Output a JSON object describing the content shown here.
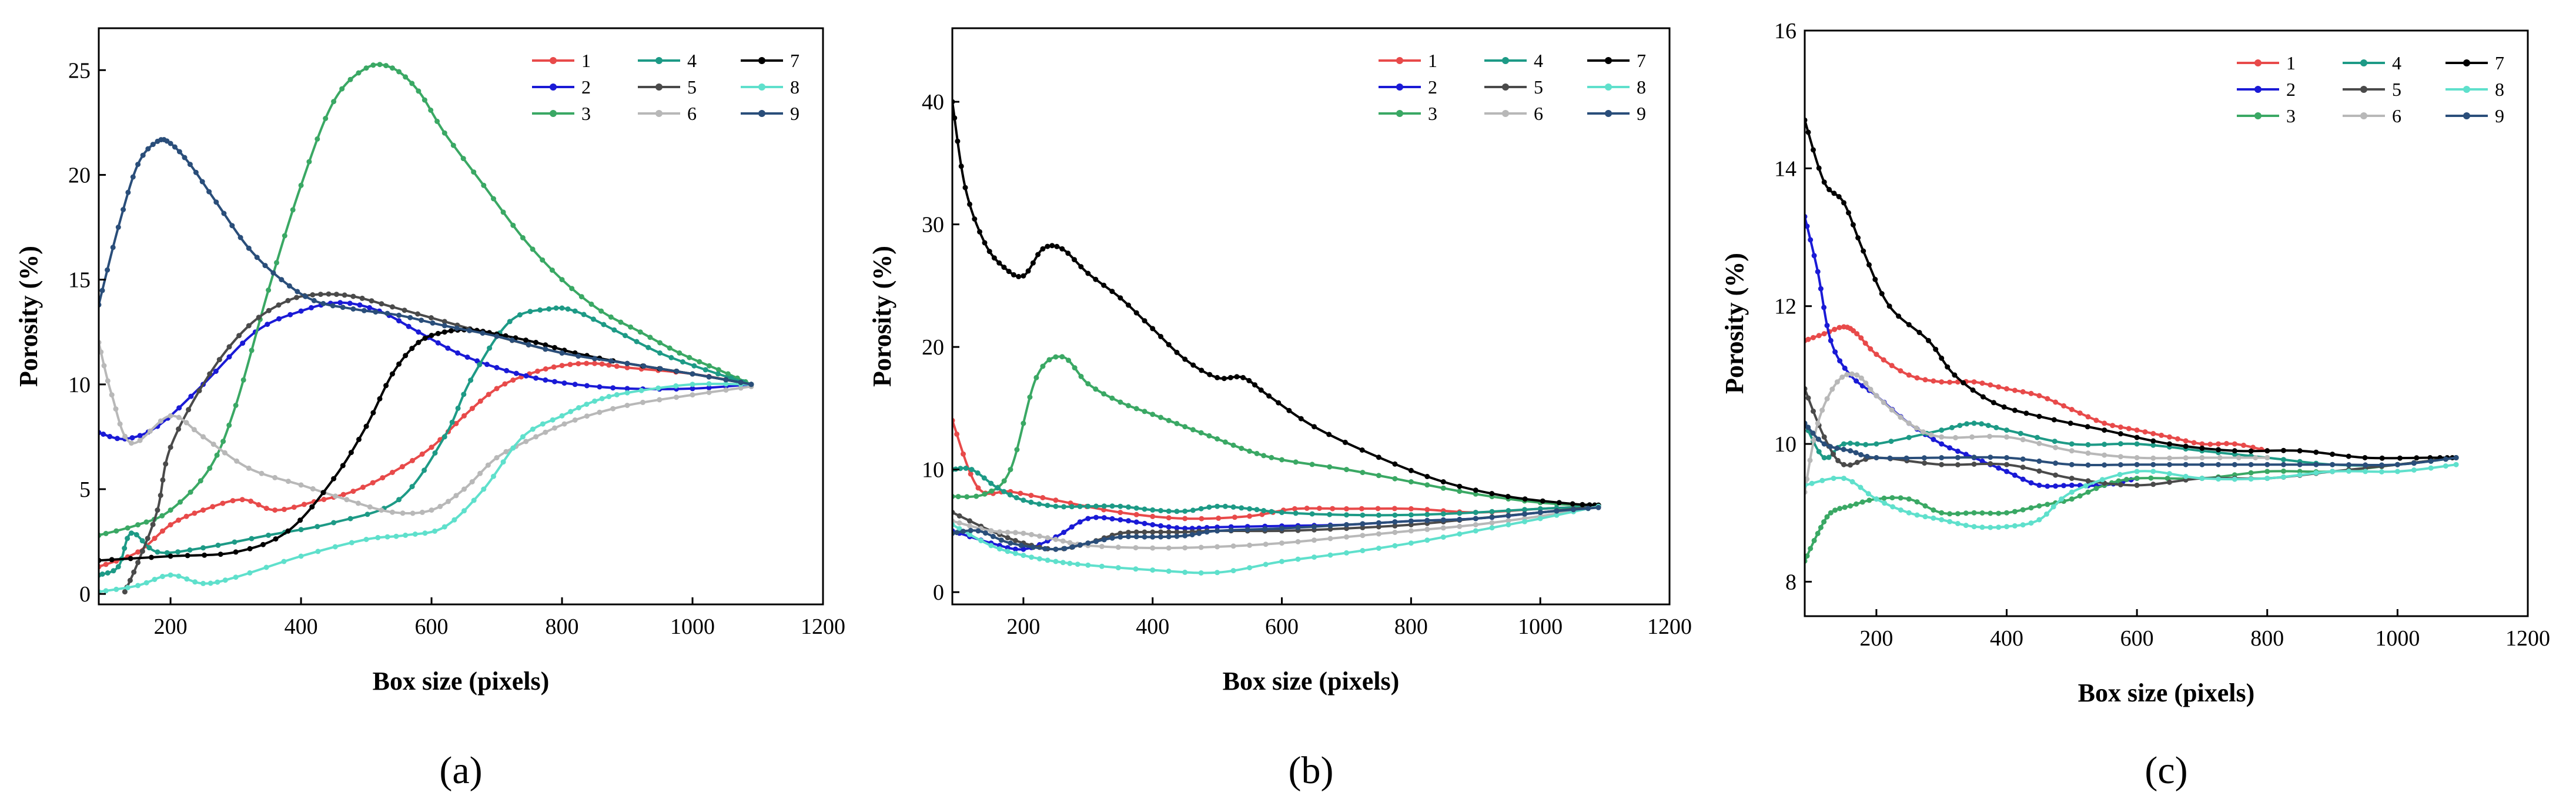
{
  "figure": {
    "xlabel": "Box size (pixels)",
    "ylabel": "Porosity (%)",
    "legend_labels": [
      "1",
      "2",
      "3",
      "4",
      "5",
      "6",
      "7",
      "8",
      "9"
    ],
    "series_colors": [
      "#e84a4a",
      "#1a1ad6",
      "#3aa864",
      "#1d9a86",
      "#4a4a4a",
      "#b8b8b8",
      "#000000",
      "#5fe0cc",
      "#2a4e7a"
    ]
  },
  "chart_data": [
    {
      "type": "line",
      "panel_label": "(a)",
      "xlabel": "Box size (pixels)",
      "ylabel": "Porosity (%)",
      "xlim": [
        90,
        1200
      ],
      "ylim": [
        -0.5,
        27
      ],
      "xticks": [
        200,
        400,
        600,
        800,
        1000,
        1200
      ],
      "yticks": [
        0,
        5,
        10,
        15,
        20,
        25
      ],
      "series": [
        {
          "name": "1",
          "x": [
            90,
            150,
            200,
            250,
            310,
            360,
            420,
            480,
            540,
            600,
            650,
            700,
            750,
            800,
            850,
            900,
            1000,
            1090
          ],
          "y": [
            1.3,
            2.0,
            3.3,
            4.0,
            4.5,
            4.0,
            4.4,
            4.9,
            5.8,
            7.0,
            8.5,
            9.8,
            10.5,
            10.9,
            11.0,
            10.8,
            10.5,
            10.0
          ]
        },
        {
          "name": "2",
          "x": [
            90,
            130,
            180,
            250,
            330,
            400,
            460,
            520,
            580,
            640,
            700,
            760,
            820,
            900,
            1000,
            1090
          ],
          "y": [
            7.7,
            7.4,
            8.0,
            10.0,
            12.5,
            13.5,
            13.9,
            13.5,
            12.5,
            11.5,
            10.8,
            10.3,
            10.0,
            9.8,
            9.8,
            10.0
          ]
        },
        {
          "name": "3",
          "x": [
            90,
            150,
            200,
            260,
            300,
            350,
            400,
            450,
            500,
            540,
            580,
            620,
            680,
            740,
            800,
            860,
            920,
            980,
            1040,
            1090
          ],
          "y": [
            2.8,
            3.3,
            4.0,
            6.0,
            9.0,
            14.5,
            19.5,
            23.5,
            25.1,
            25.1,
            24.0,
            22.0,
            19.5,
            17.0,
            15.0,
            13.5,
            12.5,
            11.5,
            10.7,
            10.0
          ]
        },
        {
          "name": "4",
          "x": [
            90,
            120,
            140,
            180,
            250,
            350,
            450,
            550,
            620,
            660,
            720,
            780,
            820,
            880,
            950,
            1020,
            1090
          ],
          "y": [
            0.9,
            1.3,
            2.9,
            2.0,
            2.2,
            2.8,
            3.4,
            4.5,
            7.5,
            10.2,
            13.0,
            13.6,
            13.5,
            12.6,
            11.5,
            10.7,
            10.0
          ]
        },
        {
          "name": "5",
          "x": [
            130,
            150,
            180,
            200,
            260,
            320,
            380,
            430,
            480,
            540,
            620,
            700,
            800,
            900,
            1000,
            1090
          ],
          "y": [
            0.1,
            1.5,
            4.0,
            7.0,
            10.5,
            12.8,
            14.0,
            14.3,
            14.2,
            13.7,
            13.0,
            12.3,
            11.5,
            11.0,
            10.5,
            10.0
          ]
        },
        {
          "name": "6",
          "x": [
            90,
            110,
            140,
            200,
            250,
            320,
            400,
            470,
            540,
            600,
            650,
            700,
            760,
            820,
            900,
            1000,
            1090
          ],
          "y": [
            12.0,
            9.5,
            7.2,
            8.5,
            7.5,
            6.0,
            5.2,
            4.5,
            3.9,
            4.0,
            5.0,
            6.5,
            7.5,
            8.3,
            9.0,
            9.5,
            9.9
          ]
        },
        {
          "name": "7",
          "x": [
            90,
            200,
            300,
            380,
            450,
            500,
            540,
            580,
            620,
            660,
            700,
            760,
            820,
            900,
            1000,
            1090
          ],
          "y": [
            1.6,
            1.8,
            2.0,
            3.0,
            5.5,
            8.0,
            10.5,
            12.0,
            12.5,
            12.6,
            12.4,
            12.0,
            11.5,
            11.0,
            10.5,
            10.0
          ]
        },
        {
          "name": "8",
          "x": [
            90,
            150,
            200,
            250,
            300,
            400,
            500,
            560,
            620,
            680,
            740,
            800,
            850,
            900,
            1000,
            1090
          ],
          "y": [
            0.1,
            0.4,
            0.9,
            0.5,
            0.8,
            1.8,
            2.6,
            2.8,
            3.2,
            5.0,
            7.5,
            8.5,
            9.2,
            9.6,
            10.0,
            10.0
          ]
        },
        {
          "name": "9",
          "x": [
            90,
            120,
            150,
            180,
            200,
            230,
            270,
            320,
            370,
            420,
            480,
            550,
            620,
            700,
            800,
            900,
            1000,
            1090
          ],
          "y": [
            13.8,
            17.5,
            20.5,
            21.6,
            21.5,
            20.5,
            18.7,
            16.5,
            15.0,
            14.0,
            13.6,
            13.3,
            12.8,
            12.3,
            11.5,
            11.0,
            10.5,
            10.0
          ]
        }
      ],
      "legend_position": "top-right"
    },
    {
      "type": "line",
      "panel_label": "(b)",
      "xlabel": "Box size (pixels)",
      "ylabel": "Porosity (%)",
      "xlim": [
        90,
        1200
      ],
      "ylim": [
        -1,
        46
      ],
      "xticks": [
        200,
        400,
        600,
        800,
        1000,
        1200
      ],
      "yticks": [
        0,
        10,
        20,
        30,
        40
      ],
      "series": [
        {
          "name": "1",
          "x": [
            90,
            130,
            180,
            250,
            350,
            450,
            550,
            620,
            700,
            800,
            900,
            1000,
            1090
          ],
          "y": [
            14.0,
            8.5,
            8.2,
            7.5,
            6.5,
            6.0,
            6.2,
            6.8,
            6.8,
            6.8,
            6.5,
            6.8,
            7.0
          ]
        },
        {
          "name": "2",
          "x": [
            90,
            150,
            200,
            250,
            300,
            350,
            400,
            450,
            500,
            600,
            700,
            800,
            900,
            1000,
            1090
          ],
          "y": [
            5.0,
            4.0,
            3.5,
            4.5,
            6.0,
            5.9,
            5.5,
            5.2,
            5.3,
            5.4,
            5.5,
            5.8,
            6.0,
            6.5,
            7.0
          ]
        },
        {
          "name": "3",
          "x": [
            90,
            140,
            180,
            220,
            260,
            300,
            350,
            400,
            450,
            500,
            550,
            600,
            700,
            800,
            900,
            1000,
            1090
          ],
          "y": [
            7.8,
            8.0,
            10.0,
            17.5,
            19.2,
            17.0,
            15.5,
            14.5,
            13.5,
            12.5,
            11.5,
            10.8,
            10.0,
            9.0,
            8.0,
            7.3,
            7.0
          ]
        },
        {
          "name": "4",
          "x": [
            90,
            120,
            160,
            200,
            250,
            300,
            350,
            400,
            450,
            500,
            550,
            600,
            700,
            800,
            900,
            1000,
            1090
          ],
          "y": [
            10.0,
            10.0,
            8.5,
            7.5,
            7.0,
            7.0,
            7.0,
            6.7,
            6.6,
            7.0,
            6.8,
            6.5,
            6.3,
            6.3,
            6.5,
            6.8,
            7.0
          ]
        },
        {
          "name": "5",
          "x": [
            90,
            150,
            200,
            250,
            300,
            350,
            400,
            450,
            500,
            600,
            700,
            800,
            900,
            1000,
            1090
          ],
          "y": [
            6.5,
            5.0,
            4.0,
            3.5,
            4.0,
            4.8,
            4.9,
            4.9,
            5.0,
            5.0,
            5.2,
            5.5,
            6.0,
            6.5,
            7.0
          ]
        },
        {
          "name": "6",
          "x": [
            90,
            150,
            200,
            250,
            300,
            400,
            500,
            600,
            700,
            800,
            900,
            1000,
            1090
          ],
          "y": [
            5.8,
            5.0,
            4.8,
            4.3,
            3.8,
            3.6,
            3.7,
            4.0,
            4.5,
            5.0,
            5.5,
            6.2,
            7.0
          ]
        },
        {
          "name": "7",
          "x": [
            90,
            110,
            140,
            170,
            200,
            230,
            260,
            300,
            350,
            400,
            450,
            500,
            540,
            580,
            650,
            750,
            850,
            950,
            1050,
            1090
          ],
          "y": [
            40.0,
            33.0,
            28.5,
            26.5,
            25.8,
            28.0,
            28.0,
            26.0,
            24.0,
            21.5,
            19.0,
            17.5,
            17.5,
            16.0,
            13.5,
            11.0,
            9.0,
            7.8,
            7.2,
            7.1
          ]
        },
        {
          "name": "8",
          "x": [
            90,
            150,
            200,
            250,
            300,
            400,
            500,
            600,
            700,
            800,
            900,
            1000,
            1090
          ],
          "y": [
            5.5,
            3.8,
            3.0,
            2.5,
            2.2,
            1.8,
            1.6,
            2.5,
            3.2,
            4.0,
            5.0,
            6.0,
            7.0
          ]
        },
        {
          "name": "9",
          "x": [
            90,
            130,
            180,
            250,
            300,
            350,
            400,
            450,
            500,
            600,
            700,
            800,
            900,
            1000,
            1090
          ],
          "y": [
            4.8,
            5.0,
            4.0,
            3.5,
            4.0,
            4.5,
            4.5,
            4.6,
            5.0,
            5.2,
            5.5,
            5.8,
            6.0,
            6.5,
            6.9
          ]
        }
      ],
      "legend_position": "top-right"
    },
    {
      "type": "line",
      "panel_label": "(c)",
      "xlabel": "Box size (pixels)",
      "ylabel": "Porosity (%)",
      "xlim": [
        90,
        1200
      ],
      "ylim": [
        7.5,
        16
      ],
      "xticks": [
        200,
        400,
        600,
        800,
        1000,
        1200
      ],
      "yticks": [
        8,
        10,
        12,
        14,
        16
      ],
      "series": [
        {
          "name": "1",
          "x": [
            90,
            120,
            150,
            170,
            200,
            250,
            300,
            350,
            400,
            450,
            500,
            550,
            600,
            650,
            700,
            750,
            800
          ],
          "y": [
            11.5,
            11.6,
            11.7,
            11.6,
            11.3,
            11.0,
            10.9,
            10.9,
            10.8,
            10.7,
            10.5,
            10.3,
            10.2,
            10.1,
            10.0,
            10.0,
            9.9
          ]
        },
        {
          "name": "2",
          "x": [
            90,
            110,
            130,
            160,
            200,
            250,
            300,
            350,
            400,
            450,
            500,
            550,
            600
          ],
          "y": [
            13.3,
            12.5,
            11.5,
            11.0,
            10.7,
            10.3,
            10.0,
            9.8,
            9.6,
            9.4,
            9.4,
            9.4,
            9.5
          ]
        },
        {
          "name": "3",
          "x": [
            90,
            110,
            130,
            160,
            200,
            250,
            300,
            350,
            400,
            450,
            500,
            550,
            600,
            700,
            800,
            900,
            1000,
            1090
          ],
          "y": [
            8.3,
            8.7,
            9.0,
            9.1,
            9.2,
            9.2,
            9.0,
            9.0,
            9.0,
            9.1,
            9.2,
            9.4,
            9.5,
            9.5,
            9.6,
            9.6,
            9.7,
            9.8
          ]
        },
        {
          "name": "4",
          "x": [
            90,
            120,
            150,
            200,
            300,
            350,
            400,
            500,
            600,
            700,
            800,
            900,
            1000,
            1090
          ],
          "y": [
            10.3,
            9.8,
            10.0,
            10.0,
            10.2,
            10.3,
            10.2,
            10.0,
            10.0,
            9.9,
            9.8,
            9.7,
            9.7,
            9.8
          ]
        },
        {
          "name": "5",
          "x": [
            90,
            120,
            150,
            200,
            300,
            400,
            500,
            600,
            700,
            800,
            900,
            1000,
            1090
          ],
          "y": [
            10.8,
            10.1,
            9.7,
            9.8,
            9.7,
            9.7,
            9.5,
            9.4,
            9.5,
            9.5,
            9.6,
            9.7,
            9.8
          ]
        },
        {
          "name": "6",
          "x": [
            90,
            110,
            140,
            170,
            200,
            250,
            300,
            400,
            500,
            600,
            700,
            800
          ],
          "y": [
            9.3,
            10.3,
            10.9,
            11.0,
            10.7,
            10.3,
            10.1,
            10.1,
            9.9,
            9.8,
            9.8,
            9.8
          ]
        },
        {
          "name": "7",
          "x": [
            90,
            120,
            150,
            180,
            220,
            280,
            320,
            380,
            450,
            550,
            650,
            750,
            850,
            950,
            1050,
            1090
          ],
          "y": [
            14.7,
            13.8,
            13.5,
            12.8,
            12.0,
            11.5,
            11.0,
            10.6,
            10.4,
            10.2,
            10.0,
            9.9,
            9.9,
            9.8,
            9.8,
            9.8
          ]
        },
        {
          "name": "8",
          "x": [
            90,
            150,
            200,
            250,
            300,
            350,
            400,
            450,
            500,
            600,
            700,
            800,
            900,
            1000,
            1090
          ],
          "y": [
            9.4,
            9.5,
            9.2,
            9.0,
            8.9,
            8.8,
            8.8,
            8.9,
            9.3,
            9.6,
            9.5,
            9.5,
            9.6,
            9.6,
            9.7
          ]
        },
        {
          "name": "9",
          "x": [
            90,
            120,
            160,
            200,
            300,
            400,
            500,
            600,
            700,
            800,
            900,
            1000,
            1090
          ],
          "y": [
            10.3,
            10.0,
            9.9,
            9.8,
            9.8,
            9.8,
            9.7,
            9.7,
            9.7,
            9.7,
            9.7,
            9.7,
            9.8
          ]
        }
      ],
      "legend_position": "top-right"
    }
  ]
}
